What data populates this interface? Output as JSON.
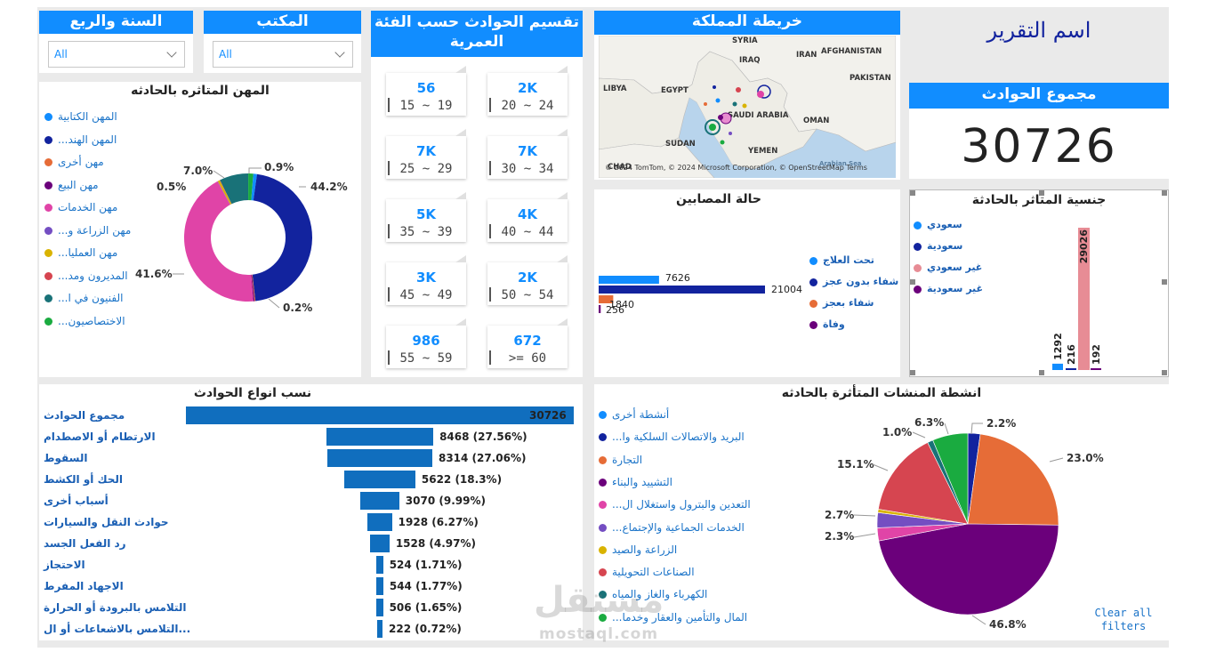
{
  "filters": {
    "year_quarter": {
      "title": "السنة والربع",
      "value": "All"
    },
    "office": {
      "title": "المكتب",
      "value": "All"
    }
  },
  "age_groups": {
    "title": "تقسيم الحوادث حسب الفئة العمرية",
    "cards": [
      {
        "value": "2K",
        "label": "20 ~ 24"
      },
      {
        "value": "56",
        "label": "15 ~ 19"
      },
      {
        "value": "7K",
        "label": "30 ~ 34"
      },
      {
        "value": "7K",
        "label": "25 ~ 29"
      },
      {
        "value": "4K",
        "label": "40 ~ 44"
      },
      {
        "value": "5K",
        "label": "35 ~ 39"
      },
      {
        "value": "2K",
        "label": "50 ~ 54"
      },
      {
        "value": "3K",
        "label": "45 ~ 49"
      },
      {
        "value": "672",
        "label": ">= 60"
      },
      {
        "value": "986",
        "label": "55 ~ 59"
      }
    ]
  },
  "map": {
    "title": "خريطة المملكة",
    "labels": [
      "SYRIA",
      "IRAQ",
      "IRAN",
      "AFGHANISTAN",
      "LIBYA",
      "EGYPT",
      "PAKISTAN",
      "SAUDI ARABIA",
      "OMAN",
      "SUDAN",
      "YEMEN",
      "CHAD",
      "Arabian Sea"
    ],
    "attribution": "© 2024 TomTom, © 2024 Microsoft Corporation, © OpenStreetMap  Terms"
  },
  "report": {
    "title": "اسم التقرير",
    "total_title": "مجموع الحوادث",
    "total_value": "30726"
  },
  "occupations": {
    "title": "المهن المتاثره بالحادثه",
    "legend": [
      {
        "label": "المهن الكتابية",
        "color": "#118dff"
      },
      {
        "label": "المهن الهند...",
        "color": "#12239e"
      },
      {
        "label": "مهن أخرى",
        "color": "#e66c37"
      },
      {
        "label": "مهن البيع",
        "color": "#6b007b"
      },
      {
        "label": "مهن الخدمات",
        "color": "#e044a7"
      },
      {
        "label": "مهن الزراعة و...",
        "color": "#744ec2"
      },
      {
        "label": "مهن العمليا...",
        "color": "#d9b300"
      },
      {
        "label": "المديرون ومد...",
        "color": "#d64550"
      },
      {
        "label": "الفنيون في ا...",
        "color": "#197278"
      },
      {
        "label": "الاختصاصيون...",
        "color": "#1aab40"
      }
    ],
    "slices": [
      {
        "pct": 0.9,
        "color": "#118dff"
      },
      {
        "pct": 44.2,
        "color": "#12239e"
      },
      {
        "pct": 0.2,
        "color": "#e66c37"
      },
      {
        "pct": 0.3,
        "color": "#6b007b"
      },
      {
        "pct": 41.6,
        "color": "#e044a7"
      },
      {
        "pct": 0.1,
        "color": "#744ec2"
      },
      {
        "pct": 0.5,
        "color": "#d9b300"
      },
      {
        "pct": 0.1,
        "color": "#d64550"
      },
      {
        "pct": 7.0,
        "color": "#197278"
      },
      {
        "pct": 1.2,
        "color": "#1aab40"
      }
    ],
    "labels": {
      "l1": "0.9%",
      "l2": "44.2%",
      "l3": "0.2%",
      "l4": "41.6%",
      "l5": "0.5%",
      "l6": "7.0%"
    }
  },
  "injured": {
    "title": "حالة المصابين",
    "legend": [
      {
        "label": "تحت العلاج",
        "color": "#118dff"
      },
      {
        "label": "شفاء بدون عجز",
        "color": "#12239e"
      },
      {
        "label": "شفاء بعجز",
        "color": "#e66c37"
      },
      {
        "label": "وفاة",
        "color": "#6b007b"
      }
    ],
    "chart_data": {
      "type": "bar",
      "categories": [
        "تحت العلاج",
        "شفاء بدون عجز",
        "شفاء بعجز",
        "وفاة"
      ],
      "values": [
        7626,
        21004,
        1840,
        256
      ],
      "colors": [
        "#118dff",
        "#12239e",
        "#e66c37",
        "#6b007b"
      ]
    }
  },
  "nationality": {
    "title": "جنسية المتاثر بالحادثة",
    "legend": [
      {
        "label": "سعودي",
        "color": "#118dff"
      },
      {
        "label": "سعودية",
        "color": "#12239e"
      },
      {
        "label": "غير سعودي",
        "color": "#e78c95"
      },
      {
        "label": "غير سعودية",
        "color": "#6b007b"
      }
    ],
    "chart_data": {
      "type": "bar",
      "categories": [
        "سعودي",
        "سعودية",
        "غير سعودي",
        "غير سعودية"
      ],
      "values": [
        1292,
        216,
        29026,
        192
      ],
      "colors": [
        "#118dff",
        "#12239e",
        "#e78c95",
        "#6b007b"
      ]
    }
  },
  "accident_types": {
    "title": "نسب انواع الحوادث",
    "chart_data": {
      "type": "bar",
      "rows": [
        {
          "label": "مجموع الحوادث",
          "value": 30726,
          "text": "30726"
        },
        {
          "label": "الارتطام أو الاصطدام",
          "value": 8468,
          "text": "8468 (27.56%)"
        },
        {
          "label": "السقوط",
          "value": 8314,
          "text": "8314 (27.06%)"
        },
        {
          "label": "الحك أو الكشط",
          "value": 5622,
          "text": "5622 (18.3%)"
        },
        {
          "label": "أسباب أخرى",
          "value": 3070,
          "text": "3070 (9.99%)"
        },
        {
          "label": "حوادث النقل والسيارات",
          "value": 1928,
          "text": "1928 (6.27%)"
        },
        {
          "label": "رد الفعل الجسد",
          "value": 1528,
          "text": "1528 (4.97%)"
        },
        {
          "label": "الاحتجاز",
          "value": 524,
          "text": "524 (1.71%)"
        },
        {
          "label": "الاجهاد المفرط",
          "value": 544,
          "text": "544 (1.77%)"
        },
        {
          "label": "التلامس بالبرودة أو الحرارة",
          "value": 506,
          "text": "506 (1.65%)"
        },
        {
          "label": "التلامس بالاشعاعات أو ال...",
          "value": 222,
          "text": "222 (0.72%)"
        }
      ]
    }
  },
  "activities": {
    "title": "انشطة المنشات المتأثرة بالحادثه",
    "legend": [
      {
        "label": "أنشطة أخرى",
        "color": "#118dff"
      },
      {
        "label": "البريد والاتصالات السلكية وا...",
        "color": "#12239e"
      },
      {
        "label": "التجارة",
        "color": "#e66c37"
      },
      {
        "label": "التشييد والبناء",
        "color": "#6b007b"
      },
      {
        "label": "التعدين والبترول واستغلال ال...",
        "color": "#e044a7"
      },
      {
        "label": "الخدمات الجماعية والإجتماع...",
        "color": "#744ec2"
      },
      {
        "label": "الزراعة والصيد",
        "color": "#d9b300"
      },
      {
        "label": "الصناعات التحويلية",
        "color": "#d64550"
      },
      {
        "label": "الكهرباء والغاز والمياه",
        "color": "#197278"
      },
      {
        "label": "المال والتأمين والعقار وخدما...",
        "color": "#1aab40"
      }
    ],
    "chart_data": {
      "type": "pie",
      "slices": [
        {
          "label": "البريد والاتصالات",
          "pct": 2.2,
          "color": "#12239e"
        },
        {
          "label": "التجارة",
          "pct": 23.0,
          "color": "#e66c37"
        },
        {
          "label": "التشييد والبناء",
          "pct": 46.8,
          "color": "#6b007b"
        },
        {
          "label": "التعدين والبترول",
          "pct": 2.3,
          "color": "#e044a7"
        },
        {
          "label": "الخدمات الجماعية",
          "pct": 2.7,
          "color": "#744ec2"
        },
        {
          "label": "الزراعة والصيد",
          "pct": 0.6,
          "color": "#d9b300"
        },
        {
          "label": "الصناعات التحويلية",
          "pct": 15.1,
          "color": "#d64550"
        },
        {
          "label": "الكهرباء والغاز والمياه",
          "pct": 1.0,
          "color": "#197278"
        },
        {
          "label": "المال والتأمين",
          "pct": 6.3,
          "color": "#1aab40"
        }
      ]
    },
    "labels": {
      "p1": "2.2%",
      "p2": "23.0%",
      "p3": "46.8%",
      "p4": "2.3%",
      "p5": "2.7%",
      "p6": "15.1%",
      "p7": "1.0%",
      "p8": "6.3%"
    }
  },
  "clear_filters": "Clear all filters",
  "watermark": {
    "brand": "مستقل",
    "site": "mostaql.com"
  }
}
